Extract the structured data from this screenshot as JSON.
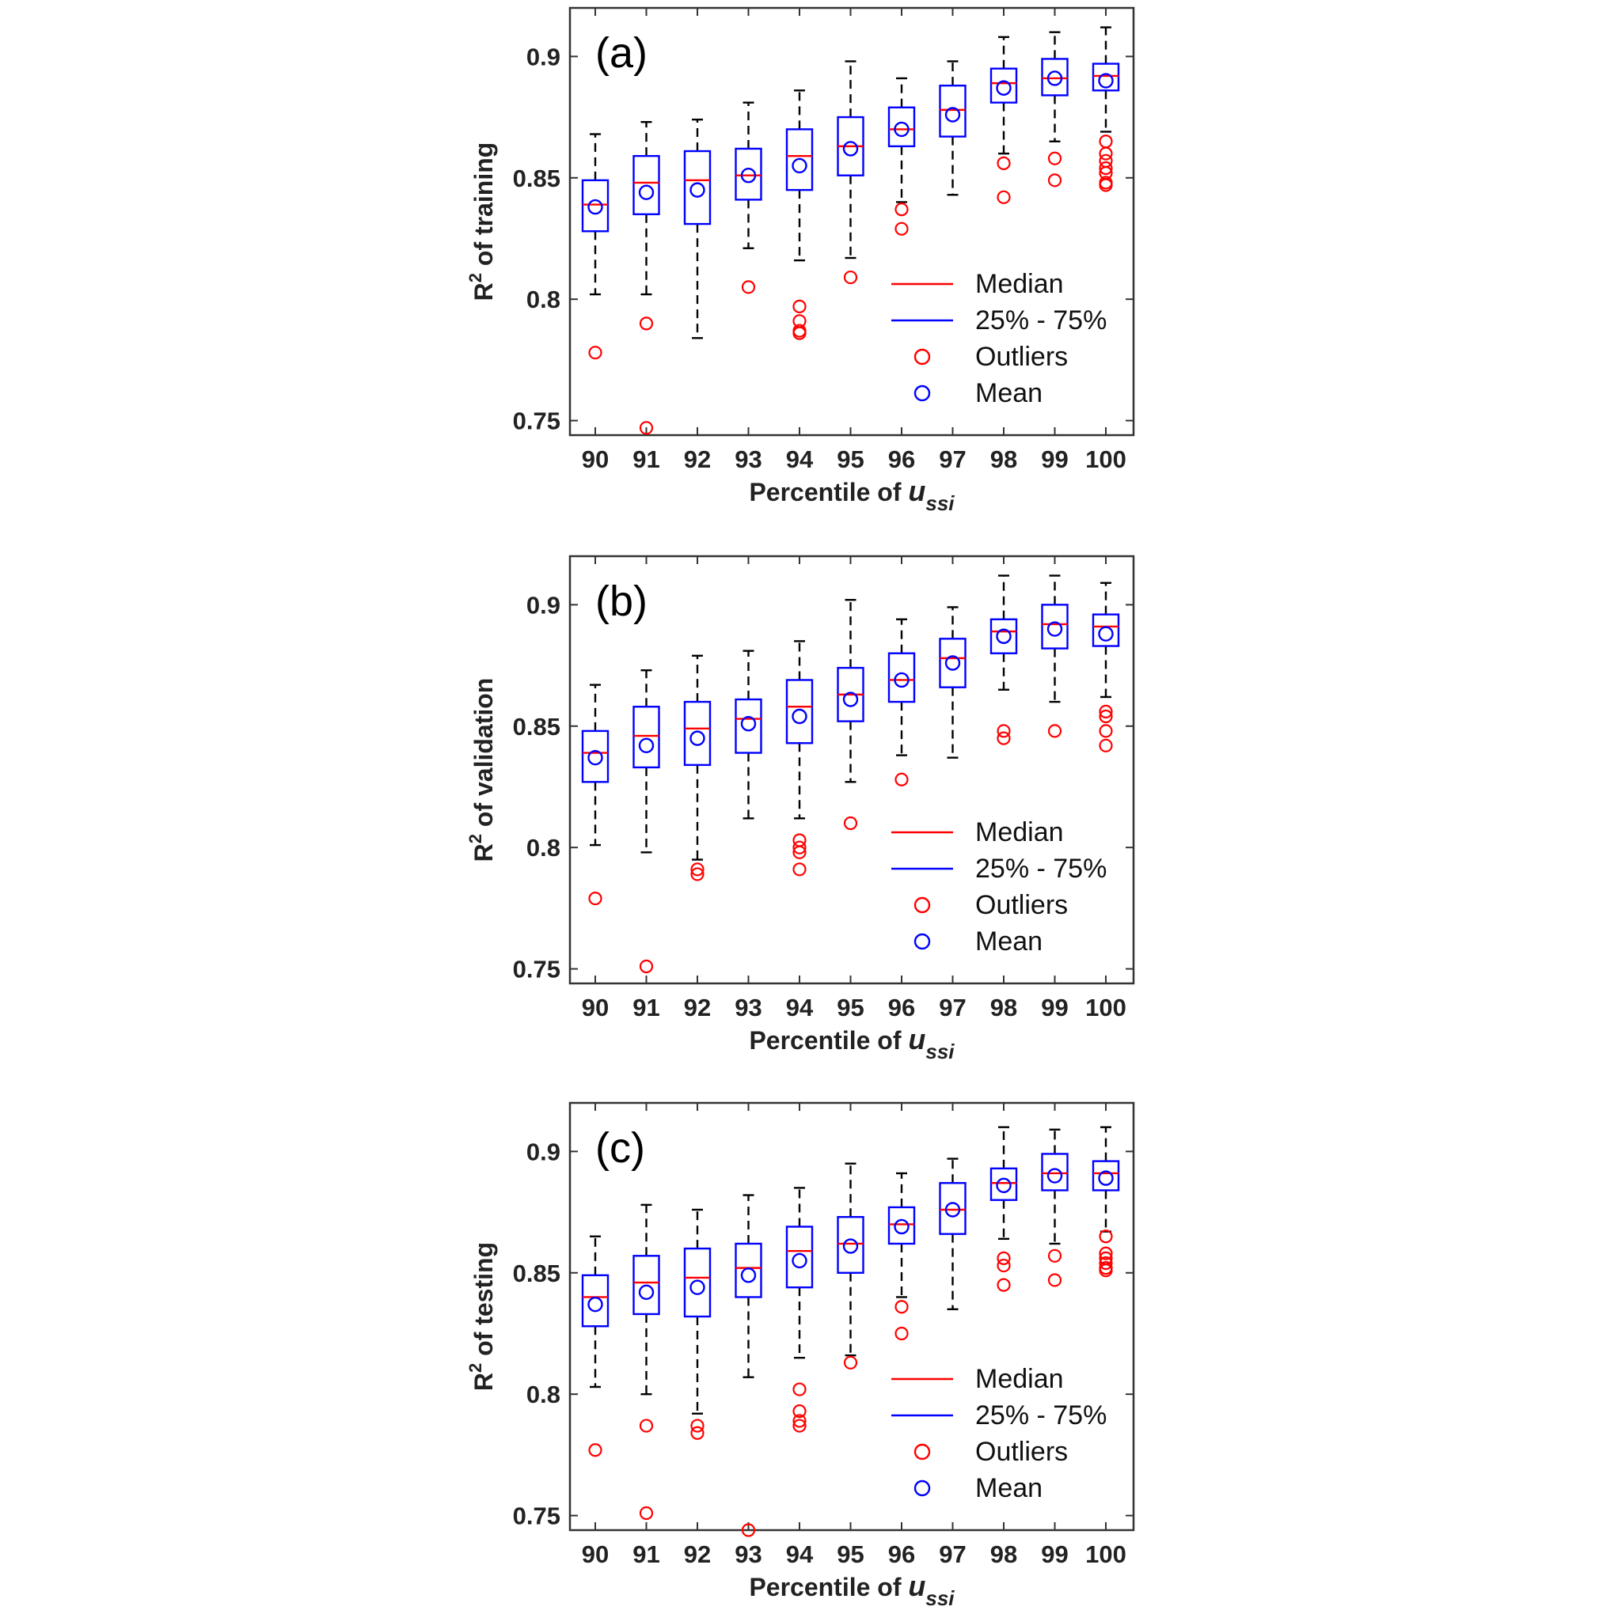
{
  "legend": {
    "median": "Median",
    "iqr": "25% - 75%",
    "outliers": "Outliers",
    "mean": "Mean"
  },
  "colors": {
    "median": "#ff0000",
    "box": "#0000ff",
    "outlier": "#ff0000",
    "mean": "#0000ff",
    "whisker": "#000000"
  },
  "chart_data": [
    {
      "type": "box",
      "panel_label": "(a)",
      "ylabel_main": "R",
      "ylabel_sup": "2",
      "ylabel_rest": " of training",
      "xlabel_main": "Percentile of ",
      "xlabel_var": "u",
      "xlabel_sub": "ssi",
      "categories": [
        "90",
        "91",
        "92",
        "93",
        "94",
        "95",
        "96",
        "97",
        "98",
        "99",
        "100"
      ],
      "yticks": [
        "0.75",
        "0.8",
        "0.85",
        "0.9"
      ],
      "ylim": [
        0.744,
        0.92
      ],
      "legend_position": "lower-right",
      "boxes": [
        {
          "q1": 0.828,
          "median": 0.839,
          "q3": 0.849,
          "whisker_low": 0.802,
          "whisker_high": 0.868,
          "mean": 0.838,
          "outliers": [
            0.778
          ]
        },
        {
          "q1": 0.835,
          "median": 0.848,
          "q3": 0.859,
          "whisker_low": 0.802,
          "whisker_high": 0.873,
          "mean": 0.844,
          "outliers": [
            0.79,
            0.747
          ]
        },
        {
          "q1": 0.831,
          "median": 0.849,
          "q3": 0.861,
          "whisker_low": 0.784,
          "whisker_high": 0.874,
          "mean": 0.845,
          "outliers": []
        },
        {
          "q1": 0.841,
          "median": 0.851,
          "q3": 0.862,
          "whisker_low": 0.821,
          "whisker_high": 0.881,
          "mean": 0.851,
          "outliers": [
            0.805
          ]
        },
        {
          "q1": 0.845,
          "median": 0.859,
          "q3": 0.87,
          "whisker_low": 0.816,
          "whisker_high": 0.886,
          "mean": 0.855,
          "outliers": [
            0.797,
            0.791,
            0.787,
            0.786
          ]
        },
        {
          "q1": 0.851,
          "median": 0.863,
          "q3": 0.875,
          "whisker_low": 0.817,
          "whisker_high": 0.898,
          "mean": 0.862,
          "outliers": [
            0.809
          ]
        },
        {
          "q1": 0.863,
          "median": 0.87,
          "q3": 0.879,
          "whisker_low": 0.84,
          "whisker_high": 0.891,
          "mean": 0.87,
          "outliers": [
            0.837,
            0.829
          ]
        },
        {
          "q1": 0.867,
          "median": 0.878,
          "q3": 0.888,
          "whisker_low": 0.843,
          "whisker_high": 0.898,
          "mean": 0.876,
          "outliers": []
        },
        {
          "q1": 0.881,
          "median": 0.889,
          "q3": 0.895,
          "whisker_low": 0.86,
          "whisker_high": 0.908,
          "mean": 0.887,
          "outliers": [
            0.856,
            0.842
          ]
        },
        {
          "q1": 0.884,
          "median": 0.891,
          "q3": 0.899,
          "whisker_low": 0.865,
          "whisker_high": 0.91,
          "mean": 0.891,
          "outliers": [
            0.858,
            0.849
          ]
        },
        {
          "q1": 0.886,
          "median": 0.892,
          "q3": 0.897,
          "whisker_low": 0.869,
          "whisker_high": 0.912,
          "mean": 0.89,
          "outliers": [
            0.865,
            0.86,
            0.857,
            0.854,
            0.852,
            0.848,
            0.847
          ]
        }
      ]
    },
    {
      "type": "box",
      "panel_label": "(b)",
      "ylabel_main": "R",
      "ylabel_sup": "2",
      "ylabel_rest": " of validation",
      "xlabel_main": "Percentile of ",
      "xlabel_var": "u",
      "xlabel_sub": "ssi",
      "categories": [
        "90",
        "91",
        "92",
        "93",
        "94",
        "95",
        "96",
        "97",
        "98",
        "99",
        "100"
      ],
      "yticks": [
        "0.75",
        "0.8",
        "0.85",
        "0.9"
      ],
      "ylim": [
        0.744,
        0.92
      ],
      "legend_position": "lower-right",
      "boxes": [
        {
          "q1": 0.827,
          "median": 0.839,
          "q3": 0.848,
          "whisker_low": 0.801,
          "whisker_high": 0.867,
          "mean": 0.837,
          "outliers": [
            0.779
          ]
        },
        {
          "q1": 0.833,
          "median": 0.846,
          "q3": 0.858,
          "whisker_low": 0.798,
          "whisker_high": 0.873,
          "mean": 0.842,
          "outliers": [
            0.751
          ]
        },
        {
          "q1": 0.834,
          "median": 0.849,
          "q3": 0.86,
          "whisker_low": 0.795,
          "whisker_high": 0.879,
          "mean": 0.845,
          "outliers": [
            0.791,
            0.789
          ]
        },
        {
          "q1": 0.839,
          "median": 0.853,
          "q3": 0.861,
          "whisker_low": 0.812,
          "whisker_high": 0.881,
          "mean": 0.851,
          "outliers": []
        },
        {
          "q1": 0.843,
          "median": 0.858,
          "q3": 0.869,
          "whisker_low": 0.812,
          "whisker_high": 0.885,
          "mean": 0.854,
          "outliers": [
            0.803,
            0.8,
            0.798,
            0.791
          ]
        },
        {
          "q1": 0.852,
          "median": 0.863,
          "q3": 0.874,
          "whisker_low": 0.827,
          "whisker_high": 0.902,
          "mean": 0.861,
          "outliers": [
            0.81
          ]
        },
        {
          "q1": 0.86,
          "median": 0.869,
          "q3": 0.88,
          "whisker_low": 0.838,
          "whisker_high": 0.894,
          "mean": 0.869,
          "outliers": [
            0.828
          ]
        },
        {
          "q1": 0.866,
          "median": 0.878,
          "q3": 0.886,
          "whisker_low": 0.837,
          "whisker_high": 0.899,
          "mean": 0.876,
          "outliers": []
        },
        {
          "q1": 0.88,
          "median": 0.889,
          "q3": 0.894,
          "whisker_low": 0.865,
          "whisker_high": 0.912,
          "mean": 0.887,
          "outliers": [
            0.848,
            0.845
          ]
        },
        {
          "q1": 0.882,
          "median": 0.892,
          "q3": 0.9,
          "whisker_low": 0.86,
          "whisker_high": 0.912,
          "mean": 0.89,
          "outliers": [
            0.848
          ]
        },
        {
          "q1": 0.883,
          "median": 0.891,
          "q3": 0.896,
          "whisker_low": 0.862,
          "whisker_high": 0.909,
          "mean": 0.888,
          "outliers": [
            0.856,
            0.854,
            0.848,
            0.842
          ]
        }
      ]
    },
    {
      "type": "box",
      "panel_label": "(c)",
      "ylabel_main": "R",
      "ylabel_sup": "2",
      "ylabel_rest": " of testing",
      "xlabel_main": "Percentile of ",
      "xlabel_var": "u",
      "xlabel_sub": "ssi",
      "categories": [
        "90",
        "91",
        "92",
        "93",
        "94",
        "95",
        "96",
        "97",
        "98",
        "99",
        "100"
      ],
      "yticks": [
        "0.75",
        "0.8",
        "0.85",
        "0.9"
      ],
      "ylim": [
        0.744,
        0.92
      ],
      "legend_position": "lower-right",
      "boxes": [
        {
          "q1": 0.828,
          "median": 0.84,
          "q3": 0.849,
          "whisker_low": 0.803,
          "whisker_high": 0.865,
          "mean": 0.837,
          "outliers": [
            0.777
          ]
        },
        {
          "q1": 0.833,
          "median": 0.846,
          "q3": 0.857,
          "whisker_low": 0.8,
          "whisker_high": 0.878,
          "mean": 0.842,
          "outliers": [
            0.787,
            0.751
          ]
        },
        {
          "q1": 0.832,
          "median": 0.848,
          "q3": 0.86,
          "whisker_low": 0.792,
          "whisker_high": 0.876,
          "mean": 0.844,
          "outliers": [
            0.787,
            0.784
          ]
        },
        {
          "q1": 0.84,
          "median": 0.852,
          "q3": 0.862,
          "whisker_low": 0.807,
          "whisker_high": 0.882,
          "mean": 0.849,
          "outliers": [
            0.744
          ]
        },
        {
          "q1": 0.844,
          "median": 0.859,
          "q3": 0.869,
          "whisker_low": 0.815,
          "whisker_high": 0.885,
          "mean": 0.855,
          "outliers": [
            0.802,
            0.793,
            0.789,
            0.787
          ]
        },
        {
          "q1": 0.85,
          "median": 0.862,
          "q3": 0.873,
          "whisker_low": 0.816,
          "whisker_high": 0.895,
          "mean": 0.861,
          "outliers": [
            0.813
          ]
        },
        {
          "q1": 0.862,
          "median": 0.87,
          "q3": 0.877,
          "whisker_low": 0.84,
          "whisker_high": 0.891,
          "mean": 0.869,
          "outliers": [
            0.836,
            0.825
          ]
        },
        {
          "q1": 0.866,
          "median": 0.876,
          "q3": 0.887,
          "whisker_low": 0.835,
          "whisker_high": 0.897,
          "mean": 0.876,
          "outliers": []
        },
        {
          "q1": 0.88,
          "median": 0.887,
          "q3": 0.893,
          "whisker_low": 0.864,
          "whisker_high": 0.91,
          "mean": 0.886,
          "outliers": [
            0.856,
            0.853,
            0.845
          ]
        },
        {
          "q1": 0.884,
          "median": 0.891,
          "q3": 0.899,
          "whisker_low": 0.862,
          "whisker_high": 0.909,
          "mean": 0.89,
          "outliers": [
            0.857,
            0.847
          ]
        },
        {
          "q1": 0.884,
          "median": 0.891,
          "q3": 0.896,
          "whisker_low": 0.867,
          "whisker_high": 0.91,
          "mean": 0.889,
          "outliers": [
            0.865,
            0.858,
            0.856,
            0.854,
            0.852,
            0.851
          ]
        }
      ]
    }
  ]
}
